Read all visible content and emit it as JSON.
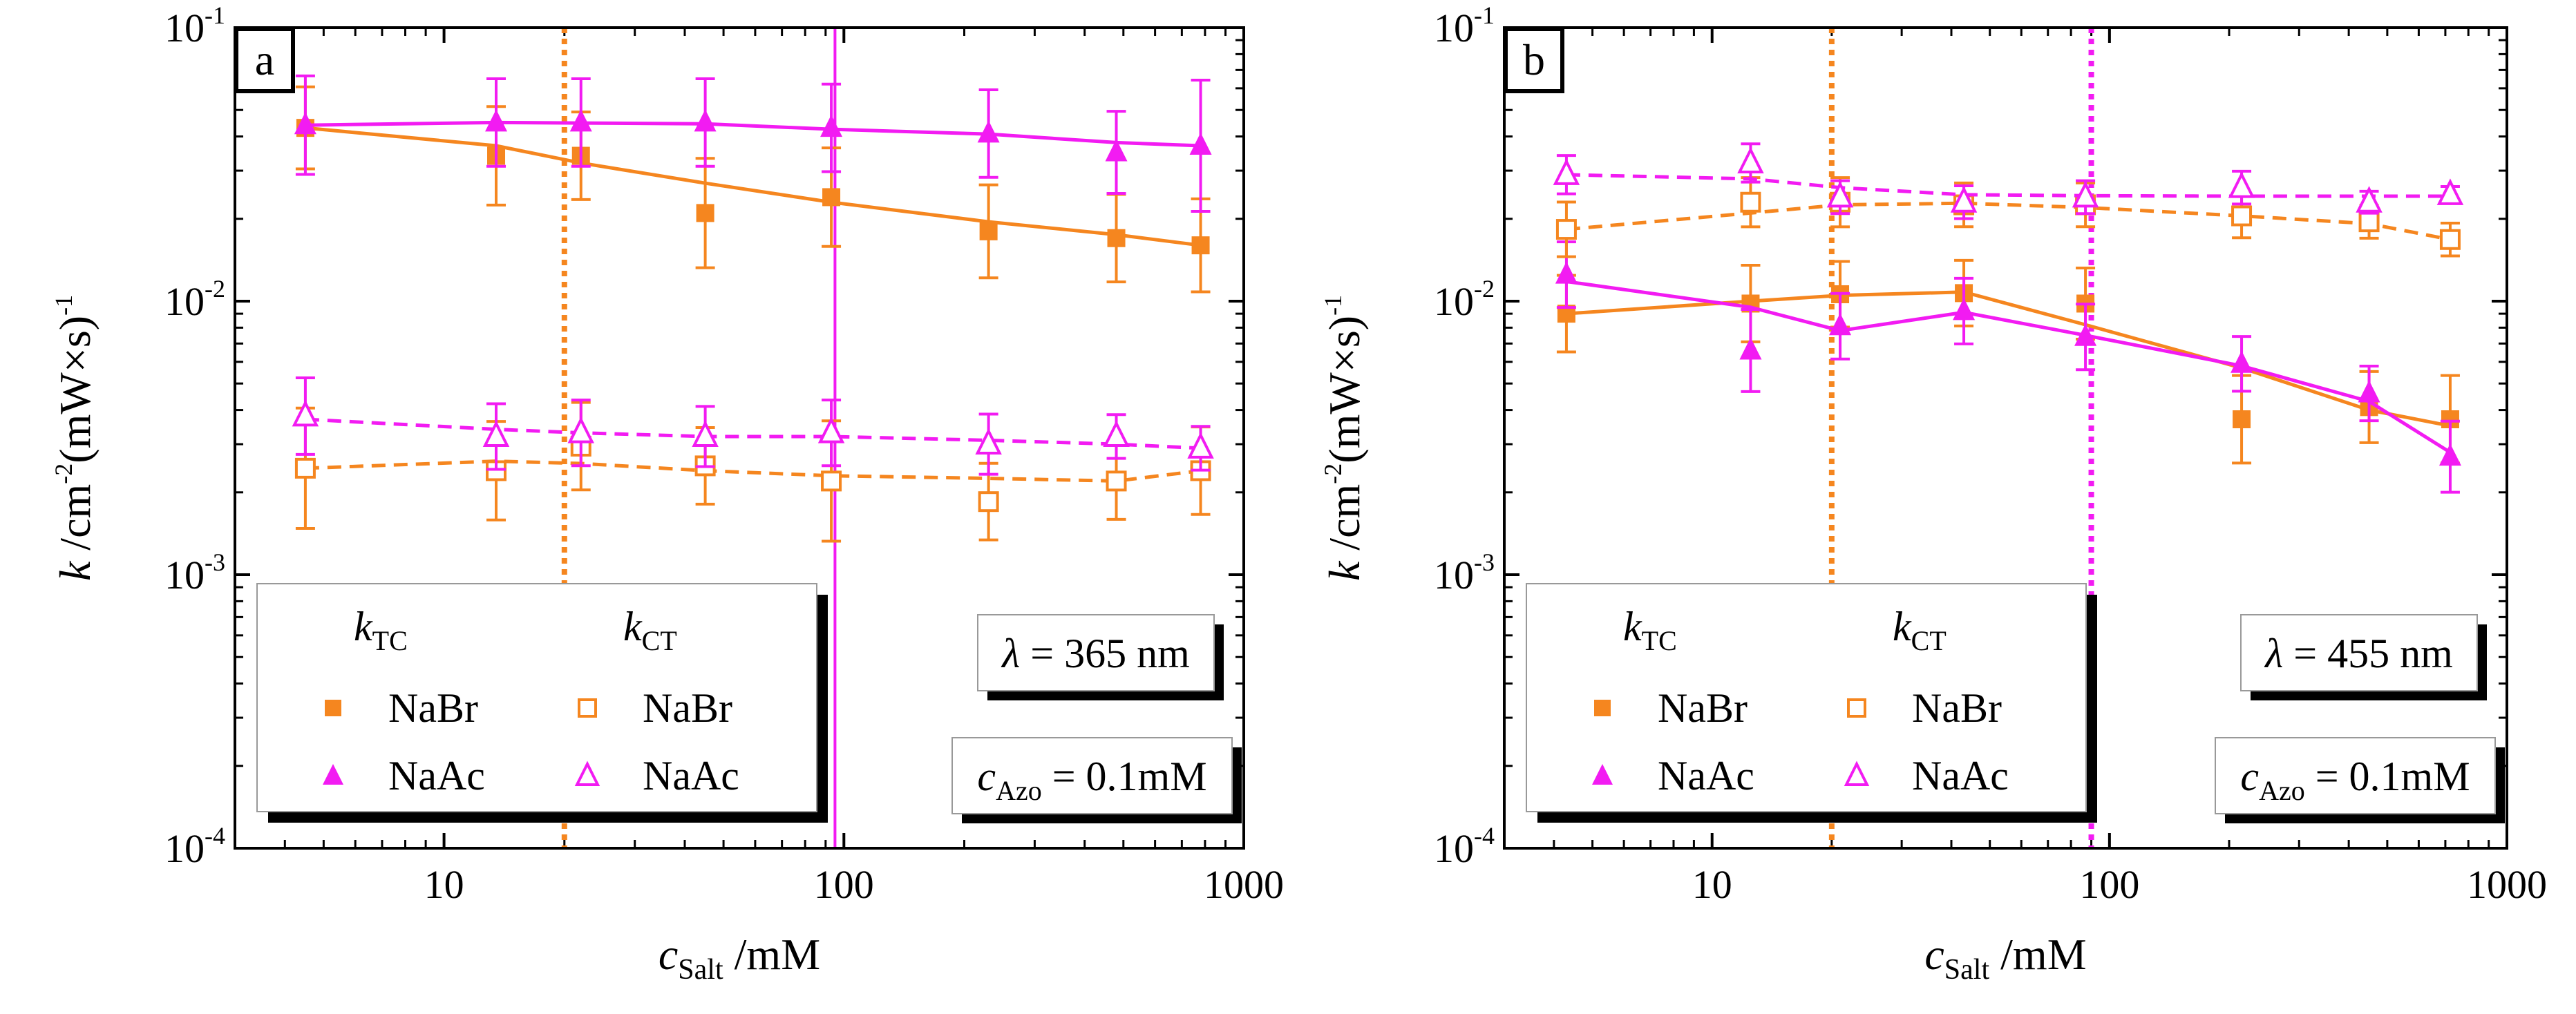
{
  "colors": {
    "nabr": "#F5861F",
    "naac": "#F21BF2",
    "axis": "#000000",
    "shadow": "#000000",
    "box_border": "#999999"
  },
  "chart_data": [
    {
      "type": "line",
      "panel_label": "a",
      "xscale": "log",
      "yscale": "log",
      "xlim": [
        3,
        1000
      ],
      "ylim": [
        0.0001,
        0.1
      ],
      "x_ticks": [
        {
          "value": 10,
          "label": "10"
        },
        {
          "value": 100,
          "label": "100"
        },
        {
          "value": 1000,
          "label": "1000"
        }
      ],
      "y_ticks": [
        {
          "value": 0.1,
          "base": "10",
          "exp": "-1"
        },
        {
          "value": 0.01,
          "base": "10",
          "exp": "-2"
        },
        {
          "value": 0.001,
          "base": "10",
          "exp": "-3"
        },
        {
          "value": 0.0001,
          "base": "10",
          "exp": "-4"
        }
      ],
      "xlabel": {
        "symbol": "c",
        "sub": "Salt",
        "unit": " /mM"
      },
      "ylabel": {
        "symbol": "k",
        "unit": " /cm",
        "exp1": "-2",
        "mid": "(mW×s)",
        "exp2": "-1"
      },
      "vlines": [
        {
          "x": 20,
          "style": "dotted",
          "color_key": "nabr"
        },
        {
          "x": 95,
          "style": "solid",
          "color_key": "naac"
        }
      ],
      "legend": {
        "position": "bottom-left",
        "col1_title": {
          "symbol": "k",
          "sub": "TC"
        },
        "col2_title": {
          "symbol": "k",
          "sub": "CT"
        },
        "entries": [
          "NaBr",
          "NaAc",
          "NaBr",
          "NaAc"
        ]
      },
      "annotations": [
        {
          "symbol": "λ",
          "text": " = 365 nm",
          "position": "bottom-right-upper"
        },
        {
          "symbol": "c",
          "sub": "Azo",
          "text": " = 0.1mM",
          "position": "bottom-right-lower"
        }
      ],
      "series": [
        {
          "name": "kTC NaBr",
          "marker": "square-filled",
          "line": "solid",
          "color_key": "nabr",
          "x": [
            4.5,
            13.5,
            22,
            45,
            93,
            230,
            480,
            780
          ],
          "y": [
            0.043,
            0.034,
            0.034,
            0.021,
            0.024,
            0.018,
            0.017,
            0.016
          ],
          "err": [
            0.15,
            0.18,
            0.16,
            0.2,
            0.18,
            0.17,
            0.16,
            0.17
          ],
          "fit": [
            0.043,
            0.037,
            0.032,
            0.027,
            0.023,
            0.0195,
            0.0175,
            0.016
          ]
        },
        {
          "name": "kTC NaAc",
          "marker": "triangle-filled",
          "line": "solid",
          "color_key": "naac",
          "x": [
            4.5,
            13.5,
            22,
            45,
            93,
            230,
            480,
            780
          ],
          "y": [
            0.044,
            0.045,
            0.045,
            0.045,
            0.043,
            0.041,
            0.035,
            0.037
          ],
          "err": [
            0.18,
            0.16,
            0.16,
            0.16,
            0.16,
            0.16,
            0.15,
            0.24
          ],
          "fit": [
            0.044,
            0.045,
            0.0448,
            0.0445,
            0.0425,
            0.0408,
            0.038,
            0.037
          ]
        },
        {
          "name": "kCT NaBr",
          "marker": "square-open",
          "line": "dashed",
          "color_key": "nabr",
          "x": [
            4.5,
            13.5,
            22,
            45,
            93,
            230,
            480,
            780
          ],
          "y": [
            0.00245,
            0.0024,
            0.00295,
            0.0025,
            0.0022,
            0.00185,
            0.0022,
            0.0024
          ],
          "err": [
            0.22,
            0.18,
            0.16,
            0.14,
            0.22,
            0.14,
            0.14,
            0.16
          ],
          "fit": [
            0.00245,
            0.0026,
            0.00255,
            0.0024,
            0.0023,
            0.00225,
            0.0022,
            0.0024
          ]
        },
        {
          "name": "kCT NaAc",
          "marker": "triangle-open",
          "line": "dashed",
          "color_key": "naac",
          "x": [
            4.5,
            13.5,
            22,
            45,
            93,
            230,
            480,
            780
          ],
          "y": [
            0.0038,
            0.0032,
            0.0033,
            0.0032,
            0.0033,
            0.003,
            0.0032,
            0.0029
          ],
          "err": [
            0.14,
            0.12,
            0.12,
            0.11,
            0.12,
            0.11,
            0.08,
            0.08
          ],
          "fit": [
            0.0037,
            0.0034,
            0.0033,
            0.0032,
            0.0032,
            0.0031,
            0.003,
            0.0029
          ]
        }
      ]
    },
    {
      "type": "line",
      "panel_label": "b",
      "xscale": "log",
      "yscale": "log",
      "xlim": [
        3,
        1000
      ],
      "ylim": [
        0.0001,
        0.1
      ],
      "x_ticks": [
        {
          "value": 10,
          "label": "10"
        },
        {
          "value": 100,
          "label": "100"
        },
        {
          "value": 1000,
          "label": "1000"
        }
      ],
      "y_ticks": [
        {
          "value": 0.1,
          "base": "10",
          "exp": "-1"
        },
        {
          "value": 0.01,
          "base": "10",
          "exp": "-2"
        },
        {
          "value": 0.001,
          "base": "10",
          "exp": "-3"
        },
        {
          "value": 0.0001,
          "base": "10",
          "exp": "-4"
        }
      ],
      "xlabel": {
        "symbol": "c",
        "sub": "Salt",
        "unit": " /mM"
      },
      "ylabel": {
        "symbol": "k",
        "unit": " /cm",
        "exp1": "-2",
        "mid": "(mW×s)",
        "exp2": "-1"
      },
      "vlines": [
        {
          "x": 20,
          "style": "dotted",
          "color_key": "nabr"
        },
        {
          "x": 90,
          "style": "dotted",
          "color_key": "naac"
        }
      ],
      "legend": {
        "position": "bottom-left",
        "col1_title": {
          "symbol": "k",
          "sub": "TC"
        },
        "col2_title": {
          "symbol": "k",
          "sub": "CT"
        },
        "entries": [
          "NaBr",
          "NaAc",
          "NaBr",
          "NaAc"
        ]
      },
      "annotations": [
        {
          "symbol": "λ",
          "text": " = 455 nm",
          "position": "bottom-right-upper"
        },
        {
          "symbol": "c",
          "sub": "Azo",
          "text": " = 0.1mM",
          "position": "bottom-right-lower"
        }
      ],
      "series": [
        {
          "name": "kTC NaBr",
          "marker": "square-filled",
          "line": "solid",
          "color_key": "nabr",
          "x": [
            4.3,
            12.5,
            21,
            43,
            87,
            215,
            450,
            720
          ],
          "y": [
            0.009,
            0.0098,
            0.0106,
            0.0107,
            0.0098,
            0.0037,
            0.0041,
            0.0037
          ],
          "err": [
            0.14,
            0.14,
            0.12,
            0.12,
            0.13,
            0.16,
            0.13,
            0.16
          ],
          "fit": [
            0.009,
            0.01,
            0.0105,
            0.0108,
            0.0082,
            0.0057,
            0.004,
            0.0035
          ]
        },
        {
          "name": "kTC NaAc",
          "marker": "triangle-filled",
          "line": "solid",
          "color_key": "naac",
          "x": [
            4.3,
            12.5,
            21,
            43,
            87,
            215,
            450,
            720
          ],
          "y": [
            0.0125,
            0.0066,
            0.0081,
            0.0092,
            0.0074,
            0.0059,
            0.0046,
            0.0027
          ],
          "err": [
            0.12,
            0.15,
            0.12,
            0.12,
            0.12,
            0.1,
            0.1,
            0.13
          ],
          "fit": [
            0.0118,
            0.0095,
            0.0078,
            0.0091,
            0.0075,
            0.0058,
            0.0043,
            0.0028
          ]
        },
        {
          "name": "kCT NaBr",
          "marker": "square-open",
          "line": "dashed",
          "color_key": "nabr",
          "x": [
            4.3,
            12.5,
            21,
            43,
            87,
            215,
            450,
            720
          ],
          "y": [
            0.0183,
            0.023,
            0.023,
            0.0225,
            0.0225,
            0.0205,
            0.0195,
            0.0168
          ],
          "err": [
            0.1,
            0.09,
            0.09,
            0.08,
            0.08,
            0.08,
            0.06,
            0.06
          ],
          "fit": [
            0.0183,
            0.021,
            0.0225,
            0.0228,
            0.022,
            0.0205,
            0.0192,
            0.0168
          ]
        },
        {
          "name": "kCT NaAc",
          "marker": "triangle-open",
          "line": "dashed",
          "color_key": "naac",
          "x": [
            4.3,
            12.5,
            21,
            43,
            87,
            215,
            450,
            720
          ],
          "y": [
            0.029,
            0.032,
            0.024,
            0.023,
            0.024,
            0.026,
            0.023,
            0.0245
          ],
          "err": [
            0.07,
            0.07,
            0.06,
            0.06,
            0.06,
            0.06,
            0.04,
            0.03
          ],
          "fit": [
            0.029,
            0.028,
            0.026,
            0.0245,
            0.0243,
            0.0242,
            0.0242,
            0.0242
          ]
        }
      ]
    }
  ]
}
